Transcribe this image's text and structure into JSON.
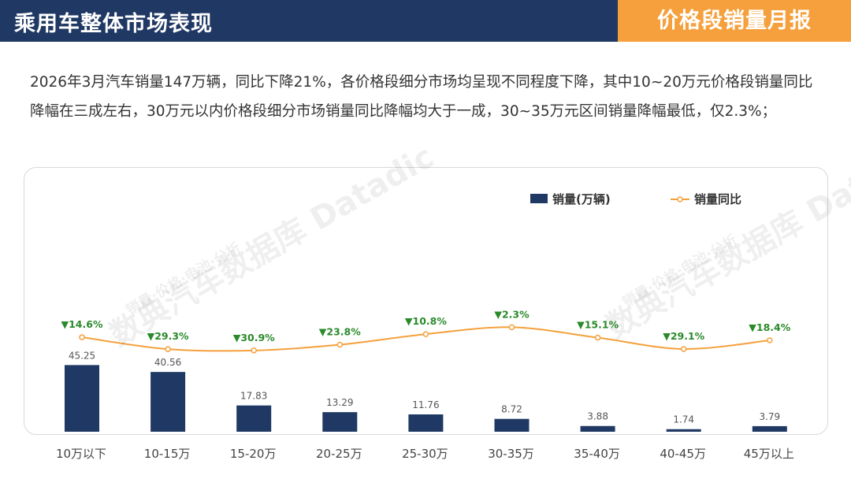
{
  "header": {
    "title": "乘用车整体市场表现",
    "tag": "价格段销量月报"
  },
  "summary": "2026年3月汽车销量147万辆，同比下降21%，各价格段细分市场均呈现不同程度下降，其中10~20万元价格段销量同比降幅在三成左右，30万元以内价格段细分市场销量同比降幅均大于一成，30~35万元区间销量降幅最低，仅2.3%；",
  "watermark": {
    "brand": "数典汽车数据库 Datadic",
    "tagline": "销量·价格·电池·分析"
  },
  "colors": {
    "header_bg": "#1f3864",
    "tag_bg": "#f5a03c",
    "bar": "#1f3864",
    "line": "#f5a03c",
    "yoy_label": "#2a8a2a"
  },
  "chart_data": {
    "type": "bar",
    "categories": [
      "10万以下",
      "10-15万",
      "15-20万",
      "20-25万",
      "25-30万",
      "30-35万",
      "35-40万",
      "40-45万",
      "45万以上"
    ],
    "series": [
      {
        "name": "销量(万辆)",
        "type": "bar",
        "values": [
          45.25,
          40.56,
          17.83,
          13.29,
          11.76,
          8.72,
          3.88,
          1.74,
          3.79
        ],
        "labels": [
          "45.25",
          "40.56",
          "17.83",
          "13.29",
          "11.76",
          "8.72",
          "3.88",
          "1.74",
          "3.79"
        ]
      },
      {
        "name": "销量同比",
        "type": "line",
        "values": [
          -14.6,
          -29.3,
          -30.9,
          -23.8,
          -10.8,
          -2.3,
          -15.1,
          -29.1,
          -18.4
        ],
        "labels": [
          "▼14.6%",
          "▼29.3%",
          "▼30.9%",
          "▼23.8%",
          "▼10.8%",
          "▼2.3%",
          "▼15.1%",
          "▼29.1%",
          "▼18.4%"
        ]
      }
    ],
    "legend_position": "top-right",
    "grid": false
  }
}
